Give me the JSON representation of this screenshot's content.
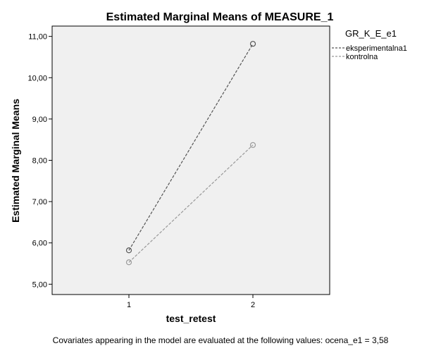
{
  "chart_data": {
    "type": "line",
    "title": "Estimated Marginal Means of MEASURE_1",
    "xlabel": "test_retest",
    "ylabel": "Estimated Marginal Means",
    "categories": [
      "1",
      "2"
    ],
    "ylim": [
      4.75,
      11.25
    ],
    "yticks": [
      5,
      6,
      7,
      8,
      9,
      10,
      11
    ],
    "ytick_labels": [
      "5,00",
      "6,00",
      "7,00",
      "8,00",
      "9,00",
      "10,00",
      "11,00"
    ],
    "grid": false,
    "legend_title": "GR_K_E_e1",
    "legend_position": "top-right, outside plot",
    "series": [
      {
        "name": "eksperimentalna1",
        "values": [
          5.82,
          10.82
        ],
        "color": "#555555",
        "dash": "dashed"
      },
      {
        "name": "kontrolna",
        "values": [
          5.53,
          8.37
        ],
        "color": "#999999",
        "dash": "dashed"
      }
    ],
    "plot_background": "#f0f0f0",
    "footnote": "Covariates appearing in the model are evaluated at the following values: ocena_e1 = 3,58"
  }
}
